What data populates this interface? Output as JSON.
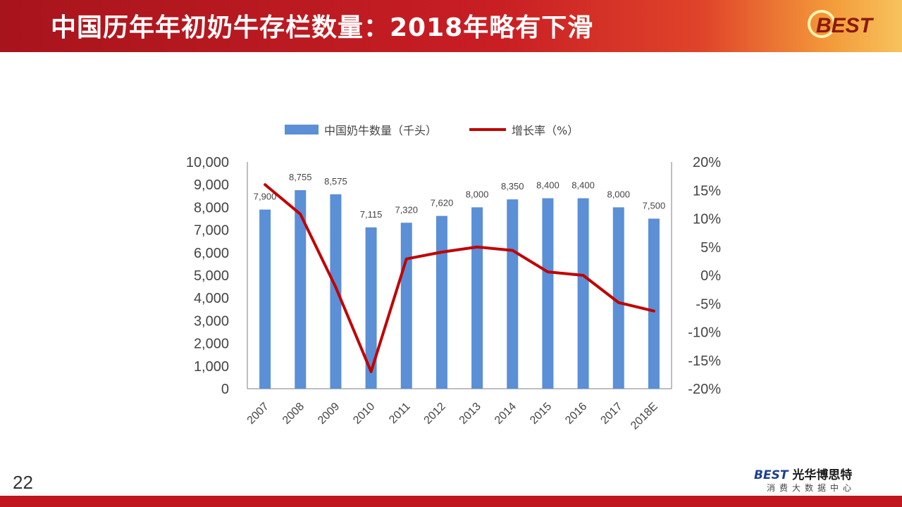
{
  "slide": {
    "title": "中国历年年初奶牛存栏数量：2018年略有下滑",
    "page_number": "22",
    "logo_text": "BEST",
    "brand_name_latin": "BEST",
    "brand_name_cn": "光华博思特",
    "brand_subtitle": "消费大数据中心"
  },
  "colors": {
    "bar": "#5b8fd6",
    "line": "#c00000",
    "header_red": "#c81e24"
  },
  "chart_data": {
    "type": "bar",
    "categories": [
      "2007",
      "2008",
      "2009",
      "2010",
      "2011",
      "2012",
      "2013",
      "2014",
      "2015",
      "2016",
      "2017",
      "2018E"
    ],
    "series": [
      {
        "name": "中国奶牛数量（千头）",
        "type": "bar",
        "axis": "left",
        "values": [
          7900,
          8755,
          8575,
          7115,
          7320,
          7620,
          8000,
          8350,
          8400,
          8400,
          8000,
          7500
        ],
        "labels": [
          "7,900",
          "8,755",
          "8,575",
          "7,115",
          "7,320",
          "7,620",
          "8,000",
          "8,350",
          "8,400",
          "8,400",
          "8,000",
          "7,500"
        ]
      },
      {
        "name": "增长率（%）",
        "type": "line",
        "axis": "right",
        "values": [
          16.0,
          10.8,
          -2.1,
          -17.0,
          2.9,
          4.1,
          5.0,
          4.4,
          0.6,
          0.0,
          -4.8,
          -6.3
        ]
      }
    ],
    "y_left": {
      "ylim": [
        0,
        10000
      ],
      "ticks": [
        "0",
        "1,000",
        "2,000",
        "3,000",
        "4,000",
        "5,000",
        "6,000",
        "7,000",
        "8,000",
        "9,000",
        "10,000"
      ]
    },
    "y_right": {
      "ylim": [
        -20,
        20
      ],
      "ticks": [
        "-20%",
        "-15%",
        "-10%",
        "-5%",
        "0%",
        "5%",
        "10%",
        "15%",
        "20%"
      ]
    },
    "legend_position": "top",
    "grid": false
  }
}
